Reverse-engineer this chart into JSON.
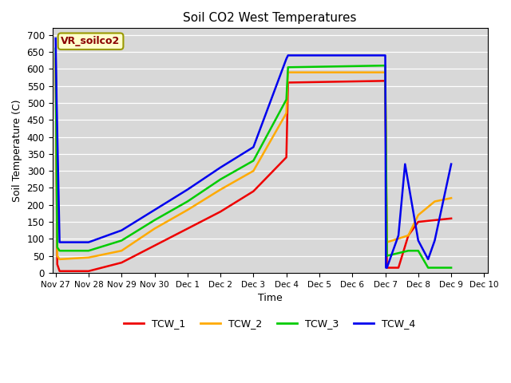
{
  "title": "Soil CO2 West Temperatures",
  "xlabel": "Time",
  "ylabel": "Soil Temperature (C)",
  "annotation": "VR_soilco2",
  "ylim": [
    0,
    720
  ],
  "yticks": [
    0,
    50,
    100,
    150,
    200,
    250,
    300,
    350,
    400,
    450,
    500,
    550,
    600,
    650,
    700
  ],
  "background_color": "#d8d8d8",
  "series": {
    "TCW_1": {
      "color": "#ee0000",
      "x": [
        0.0,
        0.05,
        0.12,
        1.0,
        2.0,
        3.0,
        4.0,
        5.0,
        6.0,
        7.0,
        7.05,
        10.0,
        10.05,
        10.4,
        10.7,
        11.0,
        11.5,
        12.0
      ],
      "y": [
        630,
        25,
        5,
        5,
        30,
        80,
        130,
        180,
        240,
        340,
        560,
        565,
        15,
        15,
        110,
        150,
        155,
        160
      ]
    },
    "TCW_2": {
      "color": "#ffaa00",
      "x": [
        0.0,
        0.05,
        0.12,
        1.0,
        2.0,
        3.0,
        4.0,
        5.0,
        6.0,
        7.0,
        7.05,
        10.0,
        10.05,
        10.7,
        11.0,
        11.5,
        12.0
      ],
      "y": [
        645,
        50,
        40,
        45,
        65,
        130,
        185,
        245,
        300,
        470,
        590,
        590,
        90,
        110,
        170,
        210,
        220
      ]
    },
    "TCW_3": {
      "color": "#00cc00",
      "x": [
        0.0,
        0.05,
        0.12,
        1.0,
        2.0,
        3.0,
        4.0,
        5.0,
        6.0,
        7.0,
        7.05,
        10.0,
        10.05,
        10.7,
        11.0,
        11.3,
        11.5,
        12.0
      ],
      "y": [
        660,
        75,
        65,
        65,
        95,
        155,
        210,
        275,
        330,
        510,
        605,
        610,
        50,
        65,
        65,
        15,
        15,
        15
      ]
    },
    "TCW_4": {
      "color": "#0000ee",
      "x": [
        0.0,
        0.03,
        0.12,
        1.0,
        2.0,
        3.0,
        4.0,
        5.0,
        6.0,
        7.0,
        7.05,
        10.0,
        10.02,
        10.05,
        10.4,
        10.6,
        11.0,
        11.3,
        11.5,
        12.0
      ],
      "y": [
        690,
        510,
        90,
        90,
        125,
        185,
        245,
        310,
        370,
        630,
        640,
        640,
        15,
        15,
        110,
        320,
        95,
        40,
        95,
        320
      ]
    }
  },
  "xtick_labels": [
    "Nov 27",
    "Nov 28",
    "Nov 29",
    "Nov 30",
    "Dec 1",
    "Dec 2",
    "Dec 3",
    "Dec 4",
    "Dec 5",
    "Dec 6",
    "Dec 7",
    "Dec 8",
    "Dec 9",
    "Dec 10"
  ],
  "xtick_pos": [
    0,
    1,
    2,
    3,
    4,
    5,
    6,
    7,
    8,
    9,
    10,
    11,
    12,
    13
  ],
  "xlim": [
    -0.1,
    13.1
  ],
  "legend_labels": [
    "TCW_1",
    "TCW_2",
    "TCW_3",
    "TCW_4"
  ],
  "legend_colors": [
    "#ee0000",
    "#ffaa00",
    "#00cc00",
    "#0000ee"
  ]
}
